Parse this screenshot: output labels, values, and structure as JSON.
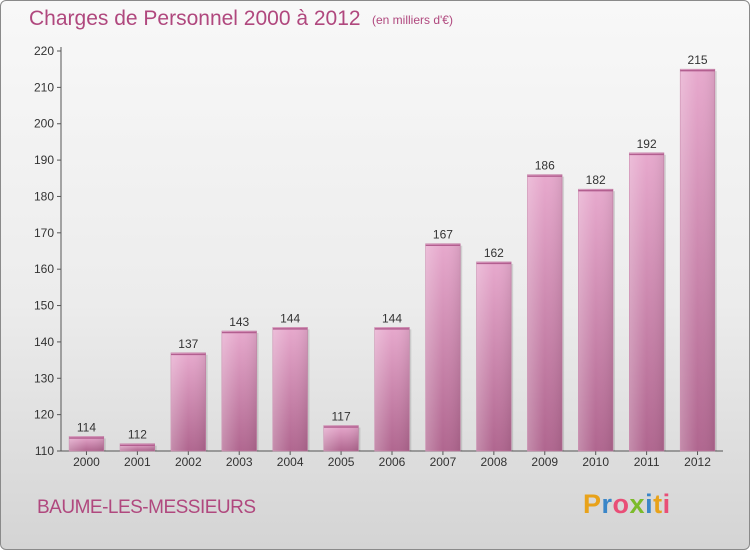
{
  "header": {
    "title": "Charges de Personnel 2000 à 2012",
    "subtitle": "(en milliers d'€)"
  },
  "footer": {
    "town": "BAUME-LES-MESSIEURS",
    "logo_letters": [
      "P",
      "r",
      "o",
      "x",
      "i",
      "t",
      "i"
    ],
    "logo_colors": [
      "#e8a21a",
      "#3a86c8",
      "#e94e77",
      "#7cbb2b",
      "#3a86c8",
      "#e8a21a",
      "#e94e77"
    ]
  },
  "chart_data": {
    "type": "bar",
    "title": "Charges de Personnel 2000 à 2012",
    "subtitle": "(en milliers d'€)",
    "xlabel": "",
    "ylabel": "",
    "categories": [
      "2000",
      "2001",
      "2002",
      "2003",
      "2004",
      "2005",
      "2006",
      "2007",
      "2008",
      "2009",
      "2010",
      "2011",
      "2012"
    ],
    "values": [
      114,
      112,
      137,
      143,
      144,
      117,
      144,
      167,
      162,
      186,
      182,
      192,
      215
    ],
    "ylim": [
      110,
      220
    ],
    "yticks": [
      110,
      120,
      130,
      140,
      150,
      160,
      170,
      180,
      190,
      200,
      210,
      220
    ],
    "grid": false,
    "bar_color": "#d88db7"
  }
}
